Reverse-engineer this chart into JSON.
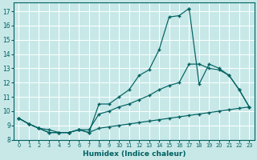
{
  "title": "",
  "xlabel": "Humidex (Indice chaleur)",
  "background_color": "#c8e8e8",
  "grid_color": "#ffffff",
  "line_color": "#006060",
  "xlim": [
    -0.5,
    23.5
  ],
  "ylim": [
    8.0,
    17.6
  ],
  "xticks": [
    0,
    1,
    2,
    3,
    4,
    5,
    6,
    7,
    8,
    9,
    10,
    11,
    12,
    13,
    14,
    15,
    16,
    17,
    18,
    19,
    20,
    21,
    22,
    23
  ],
  "yticks": [
    8,
    9,
    10,
    11,
    12,
    13,
    14,
    15,
    16,
    17
  ],
  "series": [
    {
      "x": [
        0,
        1,
        2,
        3,
        4,
        5,
        6,
        7,
        8,
        9,
        10,
        11,
        12,
        13,
        14,
        15,
        16,
        17
      ],
      "y": [
        9.5,
        9.1,
        8.8,
        8.5,
        8.5,
        8.5,
        8.7,
        8.5,
        10.5,
        10.5,
        11.0,
        11.5,
        12.5,
        12.9,
        14.3,
        16.6,
        16.7,
        17.2
      ]
    },
    {
      "x": [
        17,
        18,
        19,
        20,
        21,
        22,
        23
      ],
      "y": [
        17.2,
        11.9,
        13.3,
        13.0,
        12.5,
        11.5,
        10.3
      ]
    },
    {
      "x": [
        0,
        1,
        2,
        3,
        4,
        5,
        6,
        7,
        8,
        9,
        10,
        11,
        12,
        13,
        14,
        15,
        16,
        17,
        18,
        19,
        20,
        21,
        22,
        23
      ],
      "y": [
        9.5,
        9.1,
        8.8,
        8.5,
        8.5,
        8.5,
        8.7,
        8.7,
        9.8,
        10.0,
        10.3,
        10.5,
        10.8,
        11.1,
        11.5,
        11.8,
        12.0,
        13.3,
        13.3,
        13.0,
        12.9,
        12.5,
        11.5,
        10.3
      ]
    },
    {
      "x": [
        0,
        1,
        2,
        3,
        4,
        5,
        6,
        7,
        8,
        9,
        10,
        11,
        12,
        13,
        14,
        15,
        16,
        17,
        18,
        19,
        20,
        21,
        22,
        23
      ],
      "y": [
        9.5,
        9.1,
        8.8,
        8.7,
        8.5,
        8.5,
        8.7,
        8.5,
        8.8,
        8.9,
        9.0,
        9.1,
        9.2,
        9.3,
        9.4,
        9.5,
        9.6,
        9.7,
        9.8,
        9.9,
        10.0,
        10.1,
        10.2,
        10.3
      ]
    }
  ]
}
